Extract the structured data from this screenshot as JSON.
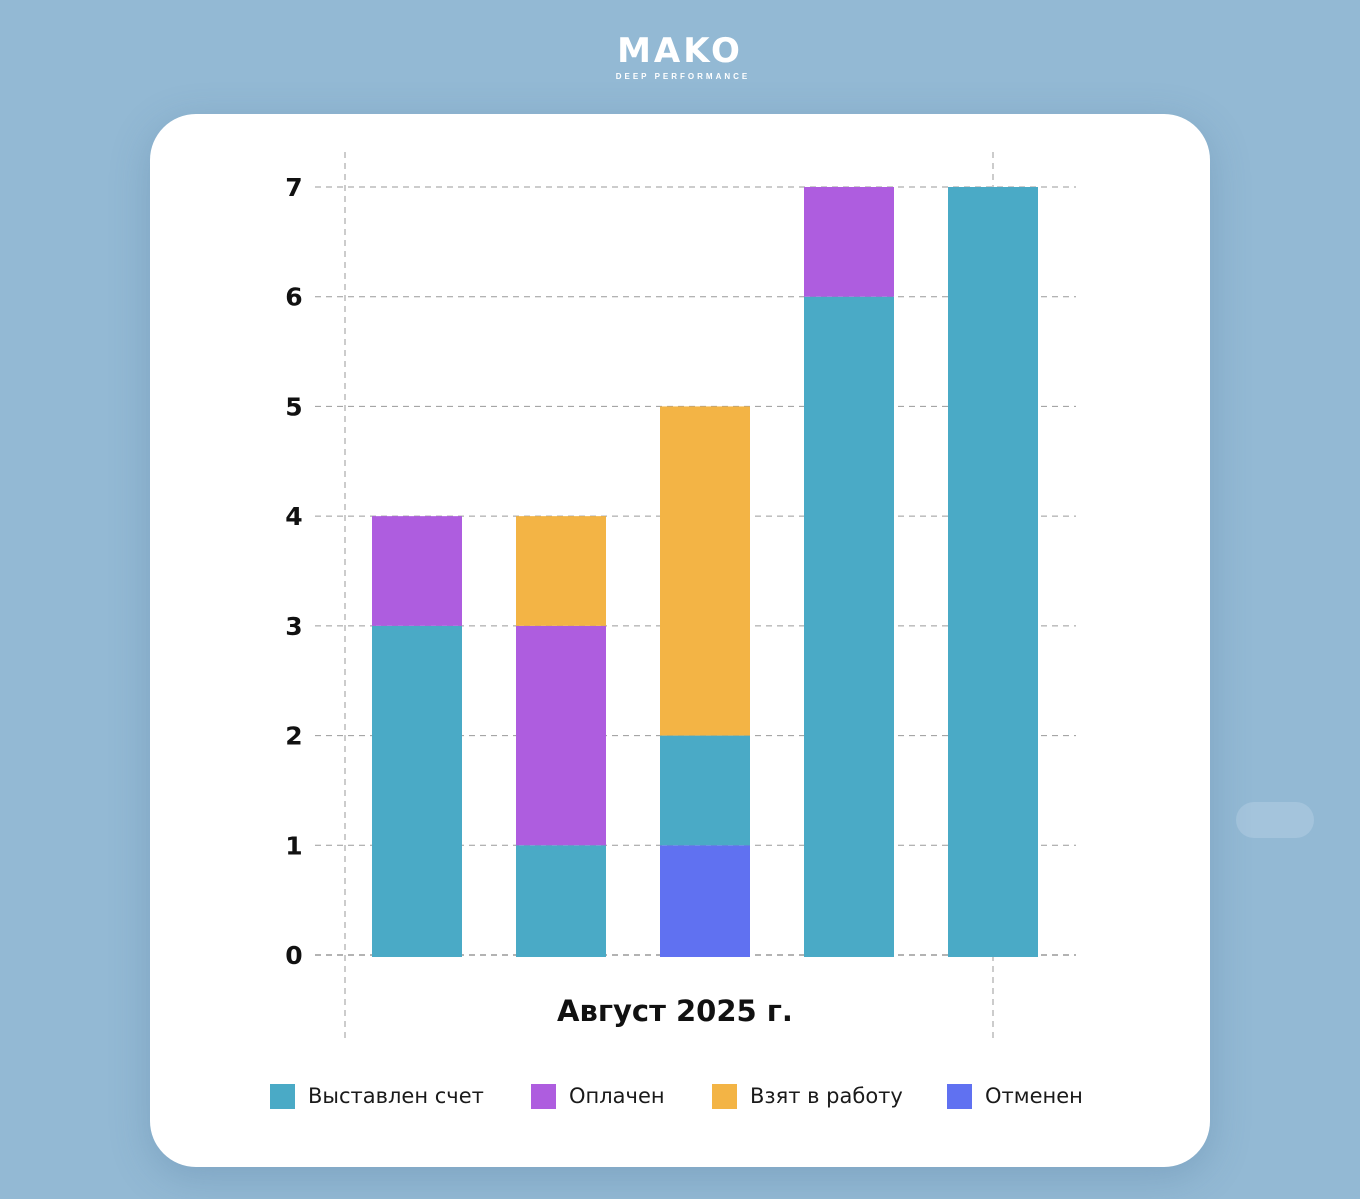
{
  "brand": {
    "name": "MAKO",
    "tagline": "DEEP PERFORMANCE"
  },
  "colors": {
    "background": "#93b9d4",
    "card": "#ffffff",
    "invoiced": "#4aaac6",
    "paid": "#ae5ddf",
    "in_progress": "#f3b445",
    "cancelled": "#6071f1"
  },
  "chart_data": {
    "type": "bar",
    "stacked": true,
    "title": "",
    "xlabel": "Август 2025 г.",
    "ylabel": "",
    "ylim": [
      0,
      7
    ],
    "yticks": [
      0,
      1,
      2,
      3,
      4,
      5,
      6,
      7
    ],
    "grid": true,
    "legend_position": "bottom",
    "categories": [
      "",
      "",
      "",
      "",
      ""
    ],
    "series": [
      {
        "name": "Отменен",
        "color": "#6071f1",
        "values": [
          0,
          0,
          1,
          0,
          0
        ]
      },
      {
        "name": "Выставлен счет",
        "color": "#4aaac6",
        "values": [
          3,
          1,
          1,
          6,
          7
        ]
      },
      {
        "name": "Оплачен",
        "color": "#ae5ddf",
        "values": [
          1,
          2,
          0,
          1,
          0
        ]
      },
      {
        "name": "Взят в работу",
        "color": "#f3b445",
        "values": [
          0,
          1,
          3,
          0,
          0
        ]
      }
    ]
  },
  "legend": [
    {
      "label": "Выставлен счет",
      "color": "#4aaac6"
    },
    {
      "label": "Оплачен",
      "color": "#ae5ddf"
    },
    {
      "label": "Взят в работу",
      "color": "#f3b445"
    },
    {
      "label": "Отменен",
      "color": "#6071f1"
    }
  ]
}
